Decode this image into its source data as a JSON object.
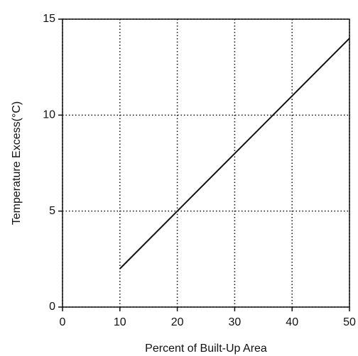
{
  "chart_data": {
    "type": "line",
    "x_label": "Percent of Built-Up Area",
    "y_label": "Temperature Excess(°C)",
    "x": [
      10,
      50
    ],
    "series": [
      {
        "color": "#111111",
        "values": [
          2,
          14
        ]
      }
    ],
    "xlim": [
      0,
      50
    ],
    "xticks": [
      0,
      10,
      20,
      30,
      40,
      50
    ],
    "ylim": [
      0,
      15
    ],
    "yticks": [
      0,
      5,
      10,
      15
    ],
    "grid": true
  }
}
